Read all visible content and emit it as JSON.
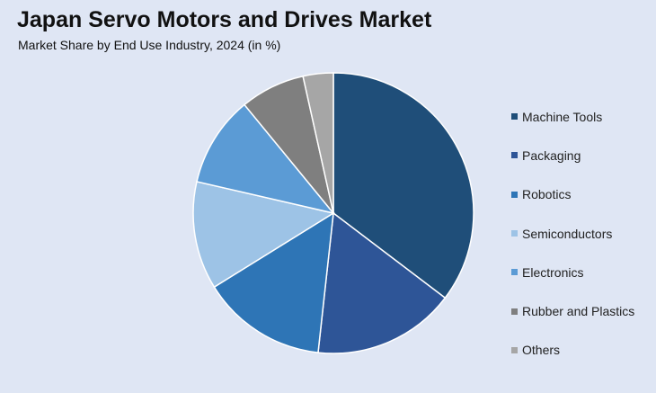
{
  "header": {
    "title": "Japan Servo Motors and Drives Market",
    "subtitle": "Market Share by End Use Industry, 2024 (in %)"
  },
  "chart_data": {
    "type": "pie",
    "title": "Japan Servo Motors and Drives Market",
    "subtitle": "Market Share by End Use Industry, 2024 (in %)",
    "legend_position": "right",
    "categories": [
      "Machine Tools",
      "Packaging",
      "Robotics",
      "Semiconductors",
      "Electronics",
      "Rubber and Plastics",
      "Others"
    ],
    "values": [
      35.5,
      16.5,
      14.5,
      12.5,
      10.5,
      7.5,
      3.5
    ],
    "colors": [
      "#1f4e79",
      "#2e5597",
      "#2e75b6",
      "#9dc3e6",
      "#5b9bd5",
      "#7f7f7f",
      "#a6a6a6"
    ]
  }
}
